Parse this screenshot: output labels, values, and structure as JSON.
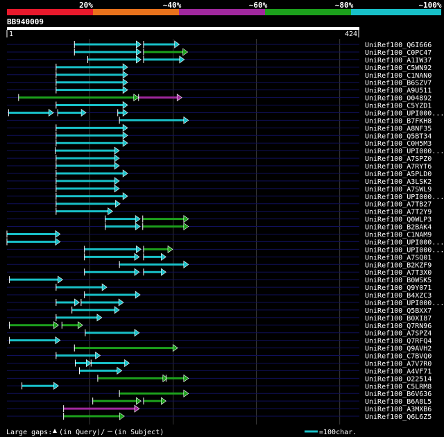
{
  "chart_data": {
    "type": "sequence-alignment-overview",
    "query": {
      "name": "BB940009",
      "start": 1,
      "end": 424
    },
    "identity_legend": [
      {
        "label": "20%",
        "color": "#e8192c"
      },
      {
        "label": "~40%",
        "color": "#e8721c"
      },
      {
        "label": "~60%",
        "color": "#a0289e"
      },
      {
        "label": "~80%",
        "color": "#1ca01c"
      },
      {
        "label": "~100%",
        "color": "#18c0c8"
      }
    ],
    "footer": {
      "gaps_label": "Large gaps:",
      "gap_query": "(in Query)/",
      "gap_subject": "(in Subject)",
      "scale_label": "=100char."
    },
    "hits": [
      {
        "name": "UniRef100_Q6I666",
        "segments": [
          {
            "s": 82,
            "e": 162,
            "c": "cyan"
          },
          {
            "s": 165,
            "e": 208,
            "c": "cyan"
          }
        ]
      },
      {
        "name": "UniRef100_C0PC47",
        "segments": [
          {
            "s": 82,
            "e": 162,
            "c": "cyan"
          },
          {
            "s": 165,
            "e": 218,
            "c": "green"
          }
        ]
      },
      {
        "name": "UniRef100_A1IW37",
        "segments": [
          {
            "s": 98,
            "e": 162,
            "c": "cyan"
          },
          {
            "s": 165,
            "e": 214,
            "c": "cyan"
          }
        ]
      },
      {
        "name": "UniRef100_C5WN92",
        "segments": [
          {
            "s": 60,
            "e": 146,
            "c": "cyan"
          }
        ]
      },
      {
        "name": "UniRef100_C1NAN0",
        "segments": [
          {
            "s": 60,
            "e": 146,
            "c": "cyan"
          }
        ]
      },
      {
        "name": "UniRef100_B6SZV7",
        "segments": [
          {
            "s": 60,
            "e": 146,
            "c": "cyan"
          }
        ]
      },
      {
        "name": "UniRef100_A9U511",
        "segments": [
          {
            "s": 60,
            "e": 146,
            "c": "cyan"
          }
        ]
      },
      {
        "name": "UniRef100_O04892",
        "segments": [
          {
            "s": 15,
            "e": 159,
            "c": "green"
          },
          {
            "s": 159,
            "e": 211,
            "c": "purple"
          }
        ]
      },
      {
        "name": "UniRef100_C5YZD1",
        "segments": [
          {
            "s": 60,
            "e": 146,
            "c": "cyan"
          }
        ]
      },
      {
        "name": "UniRef100_UPI000...",
        "segments": [
          {
            "s": 3,
            "e": 57,
            "c": "cyan"
          },
          {
            "s": 62,
            "e": 96,
            "c": "cyan"
          },
          {
            "s": 134,
            "e": 146,
            "c": "cyan"
          }
        ]
      },
      {
        "name": "UniRef100_B7FKH8",
        "segments": [
          {
            "s": 136,
            "e": 219,
            "c": "cyan"
          }
        ]
      },
      {
        "name": "UniRef100_A8NF35",
        "segments": [
          {
            "s": 60,
            "e": 146,
            "c": "cyan"
          }
        ]
      },
      {
        "name": "UniRef100_Q5BT34",
        "segments": [
          {
            "s": 60,
            "e": 146,
            "c": "cyan"
          }
        ]
      },
      {
        "name": "UniRef100_C0H5M3",
        "segments": [
          {
            "s": 60,
            "e": 146,
            "c": "cyan"
          }
        ]
      },
      {
        "name": "UniRef100_UPI000...",
        "segments": [
          {
            "s": 59,
            "e": 136,
            "c": "cyan"
          }
        ]
      },
      {
        "name": "UniRef100_A7SPZ0",
        "segments": [
          {
            "s": 60,
            "e": 136,
            "c": "cyan"
          }
        ]
      },
      {
        "name": "UniRef100_A7RYT6",
        "segments": [
          {
            "s": 60,
            "e": 136,
            "c": "cyan"
          }
        ]
      },
      {
        "name": "UniRef100_A5PLD0",
        "segments": [
          {
            "s": 60,
            "e": 146,
            "c": "cyan"
          }
        ]
      },
      {
        "name": "UniRef100_A3LSK2",
        "segments": [
          {
            "s": 60,
            "e": 136,
            "c": "cyan"
          }
        ]
      },
      {
        "name": "UniRef100_A7SWL9",
        "segments": [
          {
            "s": 60,
            "e": 136,
            "c": "cyan"
          }
        ]
      },
      {
        "name": "UniRef100_UPI000...",
        "segments": [
          {
            "s": 60,
            "e": 146,
            "c": "cyan"
          }
        ]
      },
      {
        "name": "UniRef100_A7TB27",
        "segments": [
          {
            "s": 60,
            "e": 137,
            "c": "cyan"
          }
        ]
      },
      {
        "name": "UniRef100_A7T2Y9",
        "segments": [
          {
            "s": 60,
            "e": 128,
            "c": "cyan"
          }
        ]
      },
      {
        "name": "UniRef100_Q0WLP3",
        "segments": [
          {
            "s": 119,
            "e": 161,
            "c": "cyan"
          },
          {
            "s": 164,
            "e": 219,
            "c": "green"
          }
        ]
      },
      {
        "name": "UniRef100_B2BAK4",
        "segments": [
          {
            "s": 119,
            "e": 161,
            "c": "cyan"
          },
          {
            "s": 164,
            "e": 219,
            "c": "green"
          }
        ]
      },
      {
        "name": "UniRef100_C1NAM9",
        "segments": [
          {
            "s": 1,
            "e": 65,
            "c": "cyan"
          }
        ]
      },
      {
        "name": "UniRef100_UPI000...",
        "segments": [
          {
            "s": 1,
            "e": 65,
            "c": "cyan"
          }
        ]
      },
      {
        "name": "UniRef100_UPI000...",
        "segments": [
          {
            "s": 94,
            "e": 162,
            "c": "cyan"
          },
          {
            "s": 165,
            "e": 200,
            "c": "green"
          }
        ]
      },
      {
        "name": "UniRef100_A7SQ01",
        "segments": [
          {
            "s": 94,
            "e": 160,
            "c": "cyan"
          },
          {
            "s": 165,
            "e": 192,
            "c": "cyan"
          }
        ]
      },
      {
        "name": "UniRef100_B2KZF9",
        "segments": [
          {
            "s": 136,
            "e": 219,
            "c": "cyan"
          }
        ]
      },
      {
        "name": "UniRef100_A7T3X0",
        "segments": [
          {
            "s": 94,
            "e": 160,
            "c": "cyan"
          },
          {
            "s": 165,
            "e": 192,
            "c": "cyan"
          }
        ]
      },
      {
        "name": "UniRef100_B0WSK5",
        "segments": [
          {
            "s": 4,
            "e": 68,
            "c": "cyan"
          }
        ]
      },
      {
        "name": "UniRef100_Q9Y071",
        "segments": [
          {
            "s": 60,
            "e": 121,
            "c": "cyan"
          }
        ]
      },
      {
        "name": "UniRef100_B4XZC3",
        "segments": [
          {
            "s": 94,
            "e": 161,
            "c": "cyan"
          }
        ]
      },
      {
        "name": "UniRef100_UPI000...",
        "segments": [
          {
            "s": 60,
            "e": 88,
            "c": "cyan"
          },
          {
            "s": 90,
            "e": 141,
            "c": "cyan"
          }
        ]
      },
      {
        "name": "UniRef100_Q5BXX7",
        "segments": [
          {
            "s": 79,
            "e": 136,
            "c": "cyan"
          }
        ]
      },
      {
        "name": "UniRef100_B0XI87",
        "segments": [
          {
            "s": 60,
            "e": 115,
            "c": "cyan"
          }
        ]
      },
      {
        "name": "UniRef100_Q7RN96",
        "segments": [
          {
            "s": 4,
            "e": 63,
            "c": "green"
          },
          {
            "s": 67,
            "e": 92,
            "c": "green"
          }
        ]
      },
      {
        "name": "UniRef100_A7SPZ4",
        "segments": [
          {
            "s": 95,
            "e": 160,
            "c": "cyan"
          }
        ]
      },
      {
        "name": "UniRef100_Q7RFQ4",
        "segments": [
          {
            "s": 4,
            "e": 65,
            "c": "cyan"
          }
        ]
      },
      {
        "name": "UniRef100_Q9AVH2",
        "segments": [
          {
            "s": 82,
            "e": 206,
            "c": "green"
          }
        ]
      },
      {
        "name": "UniRef100_C7BVQ0",
        "segments": [
          {
            "s": 60,
            "e": 113,
            "c": "cyan"
          }
        ]
      },
      {
        "name": "UniRef100_A7V7R0",
        "segments": [
          {
            "s": 83,
            "e": 102,
            "c": "cyan"
          },
          {
            "s": 102,
            "e": 148,
            "c": "cyan"
          }
        ]
      },
      {
        "name": "UniRef100_A4VF71",
        "segments": [
          {
            "s": 88,
            "e": 139,
            "c": "cyan"
          }
        ]
      },
      {
        "name": "UniRef100_O22514",
        "segments": [
          {
            "s": 110,
            "e": 194,
            "c": "green"
          },
          {
            "s": 192,
            "e": 219,
            "c": "green"
          }
        ]
      },
      {
        "name": "UniRef100_C5LRM8",
        "segments": [
          {
            "s": 19,
            "e": 63,
            "c": "cyan"
          }
        ]
      },
      {
        "name": "UniRef100_B6V636",
        "segments": [
          {
            "s": 136,
            "e": 219,
            "c": "green"
          }
        ]
      },
      {
        "name": "UniRef100_B6A8L5",
        "segments": [
          {
            "s": 104,
            "e": 162,
            "c": "green"
          },
          {
            "s": 165,
            "e": 192,
            "c": "green"
          }
        ]
      },
      {
        "name": "UniRef100_A3MXB6",
        "segments": [
          {
            "s": 69,
            "e": 160,
            "c": "purple"
          }
        ]
      },
      {
        "name": "UniRef100_Q6L6Z5",
        "segments": [
          {
            "s": 69,
            "e": 142,
            "c": "green"
          }
        ]
      }
    ]
  }
}
